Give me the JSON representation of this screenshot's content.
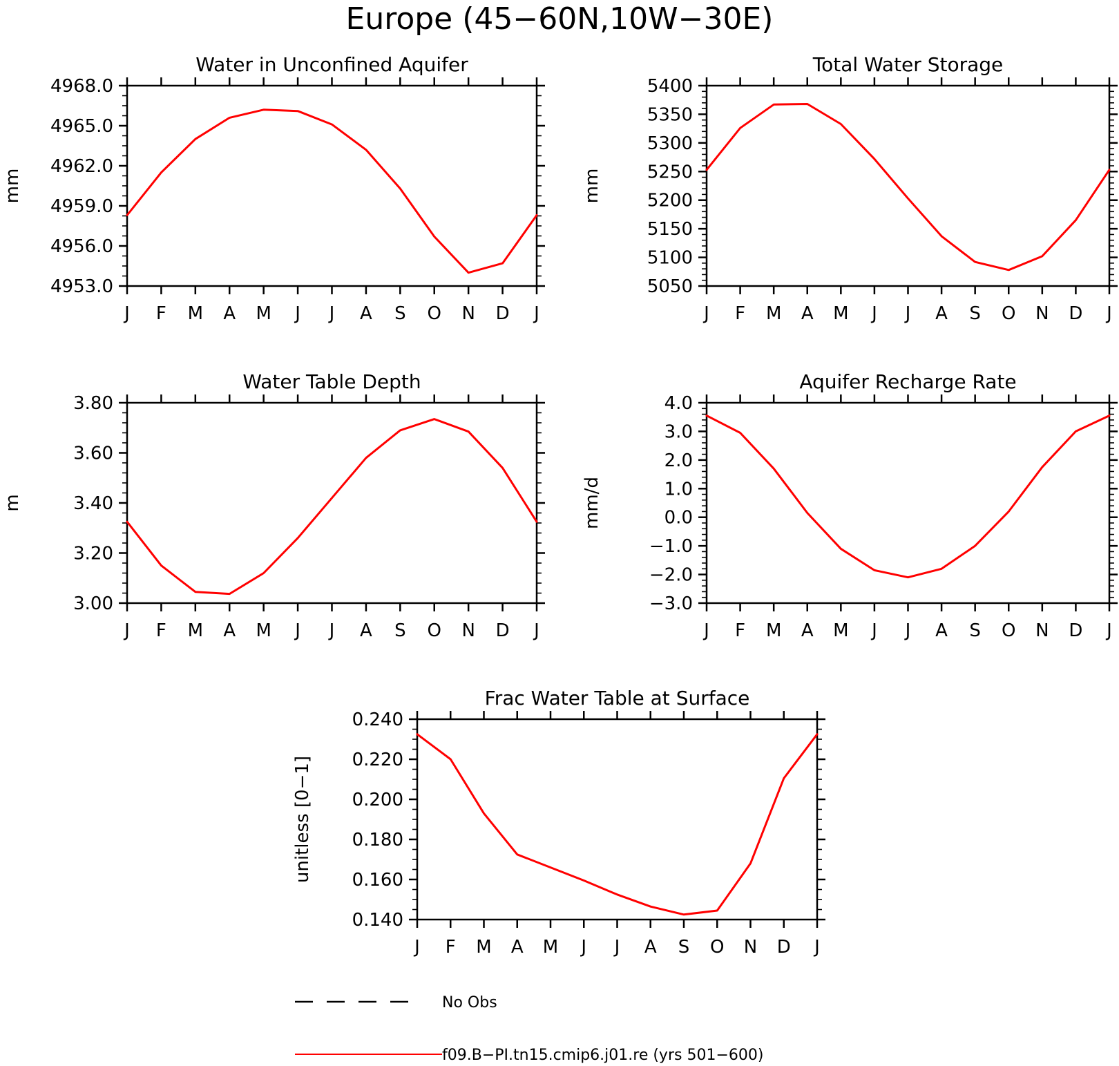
{
  "figure": {
    "title": "Europe (45−60N,10W−30E)",
    "colors": {
      "model": "#ff0000",
      "obs": "#000000"
    }
  },
  "legend": {
    "entries": [
      {
        "label": "No Obs",
        "style": "dashed",
        "color": "#000000"
      },
      {
        "label": "f09.B−PI.tn15.cmip6.j01.re (yrs 501−600)",
        "style": "solid",
        "color": "#ff0000"
      }
    ]
  },
  "chart_data": [
    {
      "type": "line",
      "title": "Water in Unconfined Aquifer",
      "ylabel": "mm",
      "categories": [
        "J",
        "F",
        "M",
        "A",
        "M",
        "J",
        "J",
        "A",
        "S",
        "O",
        "N",
        "D",
        "J"
      ],
      "ylim": [
        4953.0,
        4968.0
      ],
      "yticks": [
        4953.0,
        4956.0,
        4959.0,
        4962.0,
        4965.0,
        4968.0
      ],
      "yticklabels": [
        "4953.0",
        "4956.0",
        "4959.0",
        "4962.0",
        "4965.0",
        "4968.0"
      ],
      "yminor": 3,
      "grid": false,
      "series": [
        {
          "name": "f09.B−PI.tn15.cmip6.j01.re (yrs 501−600)",
          "color": "#ff0000",
          "values": [
            4958.3,
            4961.5,
            4964.0,
            4965.6,
            4966.2,
            4966.1,
            4965.1,
            4963.2,
            4960.3,
            4956.7,
            4954.0,
            4954.7,
            4958.3
          ]
        }
      ]
    },
    {
      "type": "line",
      "title": "Total Water Storage",
      "ylabel": "mm",
      "categories": [
        "J",
        "F",
        "M",
        "A",
        "M",
        "J",
        "J",
        "A",
        "S",
        "O",
        "N",
        "D",
        "J"
      ],
      "ylim": [
        5050,
        5400
      ],
      "yticks": [
        5050,
        5100,
        5150,
        5200,
        5250,
        5300,
        5350,
        5400
      ],
      "yticklabels": [
        "5050",
        "5100",
        "5150",
        "5200",
        "5250",
        "5300",
        "5350",
        "5400"
      ],
      "yminor": 4,
      "grid": false,
      "series": [
        {
          "name": "f09.B−PI.tn15.cmip6.j01.re (yrs 501−600)",
          "color": "#ff0000",
          "values": [
            5253,
            5326,
            5367,
            5368,
            5333,
            5272,
            5203,
            5137,
            5092,
            5078,
            5102,
            5165,
            5253
          ]
        }
      ]
    },
    {
      "type": "line",
      "title": "Water Table Depth",
      "ylabel": "m",
      "categories": [
        "J",
        "F",
        "M",
        "A",
        "M",
        "J",
        "J",
        "A",
        "S",
        "O",
        "N",
        "D",
        "J"
      ],
      "ylim": [
        3.0,
        3.8
      ],
      "yticks": [
        3.0,
        3.2,
        3.4,
        3.6,
        3.8
      ],
      "yticklabels": [
        "3.00",
        "3.20",
        "3.40",
        "3.60",
        "3.80"
      ],
      "yminor": 4,
      "grid": false,
      "series": [
        {
          "name": "f09.B−PI.tn15.cmip6.j01.re (yrs 501−600)",
          "color": "#ff0000",
          "values": [
            3.325,
            3.15,
            3.045,
            3.037,
            3.12,
            3.26,
            3.42,
            3.58,
            3.69,
            3.735,
            3.685,
            3.54,
            3.325
          ]
        }
      ]
    },
    {
      "type": "line",
      "title": "Aquifer Recharge Rate",
      "ylabel": "mm/d",
      "categories": [
        "J",
        "F",
        "M",
        "A",
        "M",
        "J",
        "J",
        "A",
        "S",
        "O",
        "N",
        "D",
        "J"
      ],
      "ylim": [
        -3.0,
        4.0
      ],
      "yticks": [
        -3.0,
        -2.0,
        -1.0,
        0.0,
        1.0,
        2.0,
        3.0,
        4.0
      ],
      "yticklabels": [
        "−3.0",
        "−2.0",
        "−1.0",
        "0.0",
        "1.0",
        "2.0",
        "3.0",
        "4.0"
      ],
      "yminor": 4,
      "grid": false,
      "series": [
        {
          "name": "f09.B−PI.tn15.cmip6.j01.re (yrs 501−600)",
          "color": "#ff0000",
          "values": [
            3.55,
            2.95,
            1.7,
            0.15,
            -1.1,
            -1.85,
            -2.1,
            -1.8,
            -1.0,
            0.2,
            1.75,
            3.0,
            3.55
          ]
        }
      ]
    },
    {
      "type": "line",
      "title": "Frac Water Table at Surface",
      "ylabel": "unitless [0−1]",
      "categories": [
        "J",
        "F",
        "M",
        "A",
        "M",
        "J",
        "J",
        "A",
        "S",
        "O",
        "N",
        "D",
        "J"
      ],
      "ylim": [
        0.14,
        0.24
      ],
      "yticks": [
        0.14,
        0.16,
        0.18,
        0.2,
        0.22,
        0.24
      ],
      "yticklabels": [
        "0.140",
        "0.160",
        "0.180",
        "0.200",
        "0.220",
        "0.240"
      ],
      "yminor": 3,
      "grid": false,
      "series": [
        {
          "name": "f09.B−PI.tn15.cmip6.j01.re (yrs 501−600)",
          "color": "#ff0000",
          "values": [
            0.2325,
            0.22,
            0.193,
            0.1725,
            0.166,
            0.1595,
            0.1525,
            0.1465,
            0.1425,
            0.1445,
            0.168,
            0.2105,
            0.2325
          ]
        }
      ]
    }
  ]
}
